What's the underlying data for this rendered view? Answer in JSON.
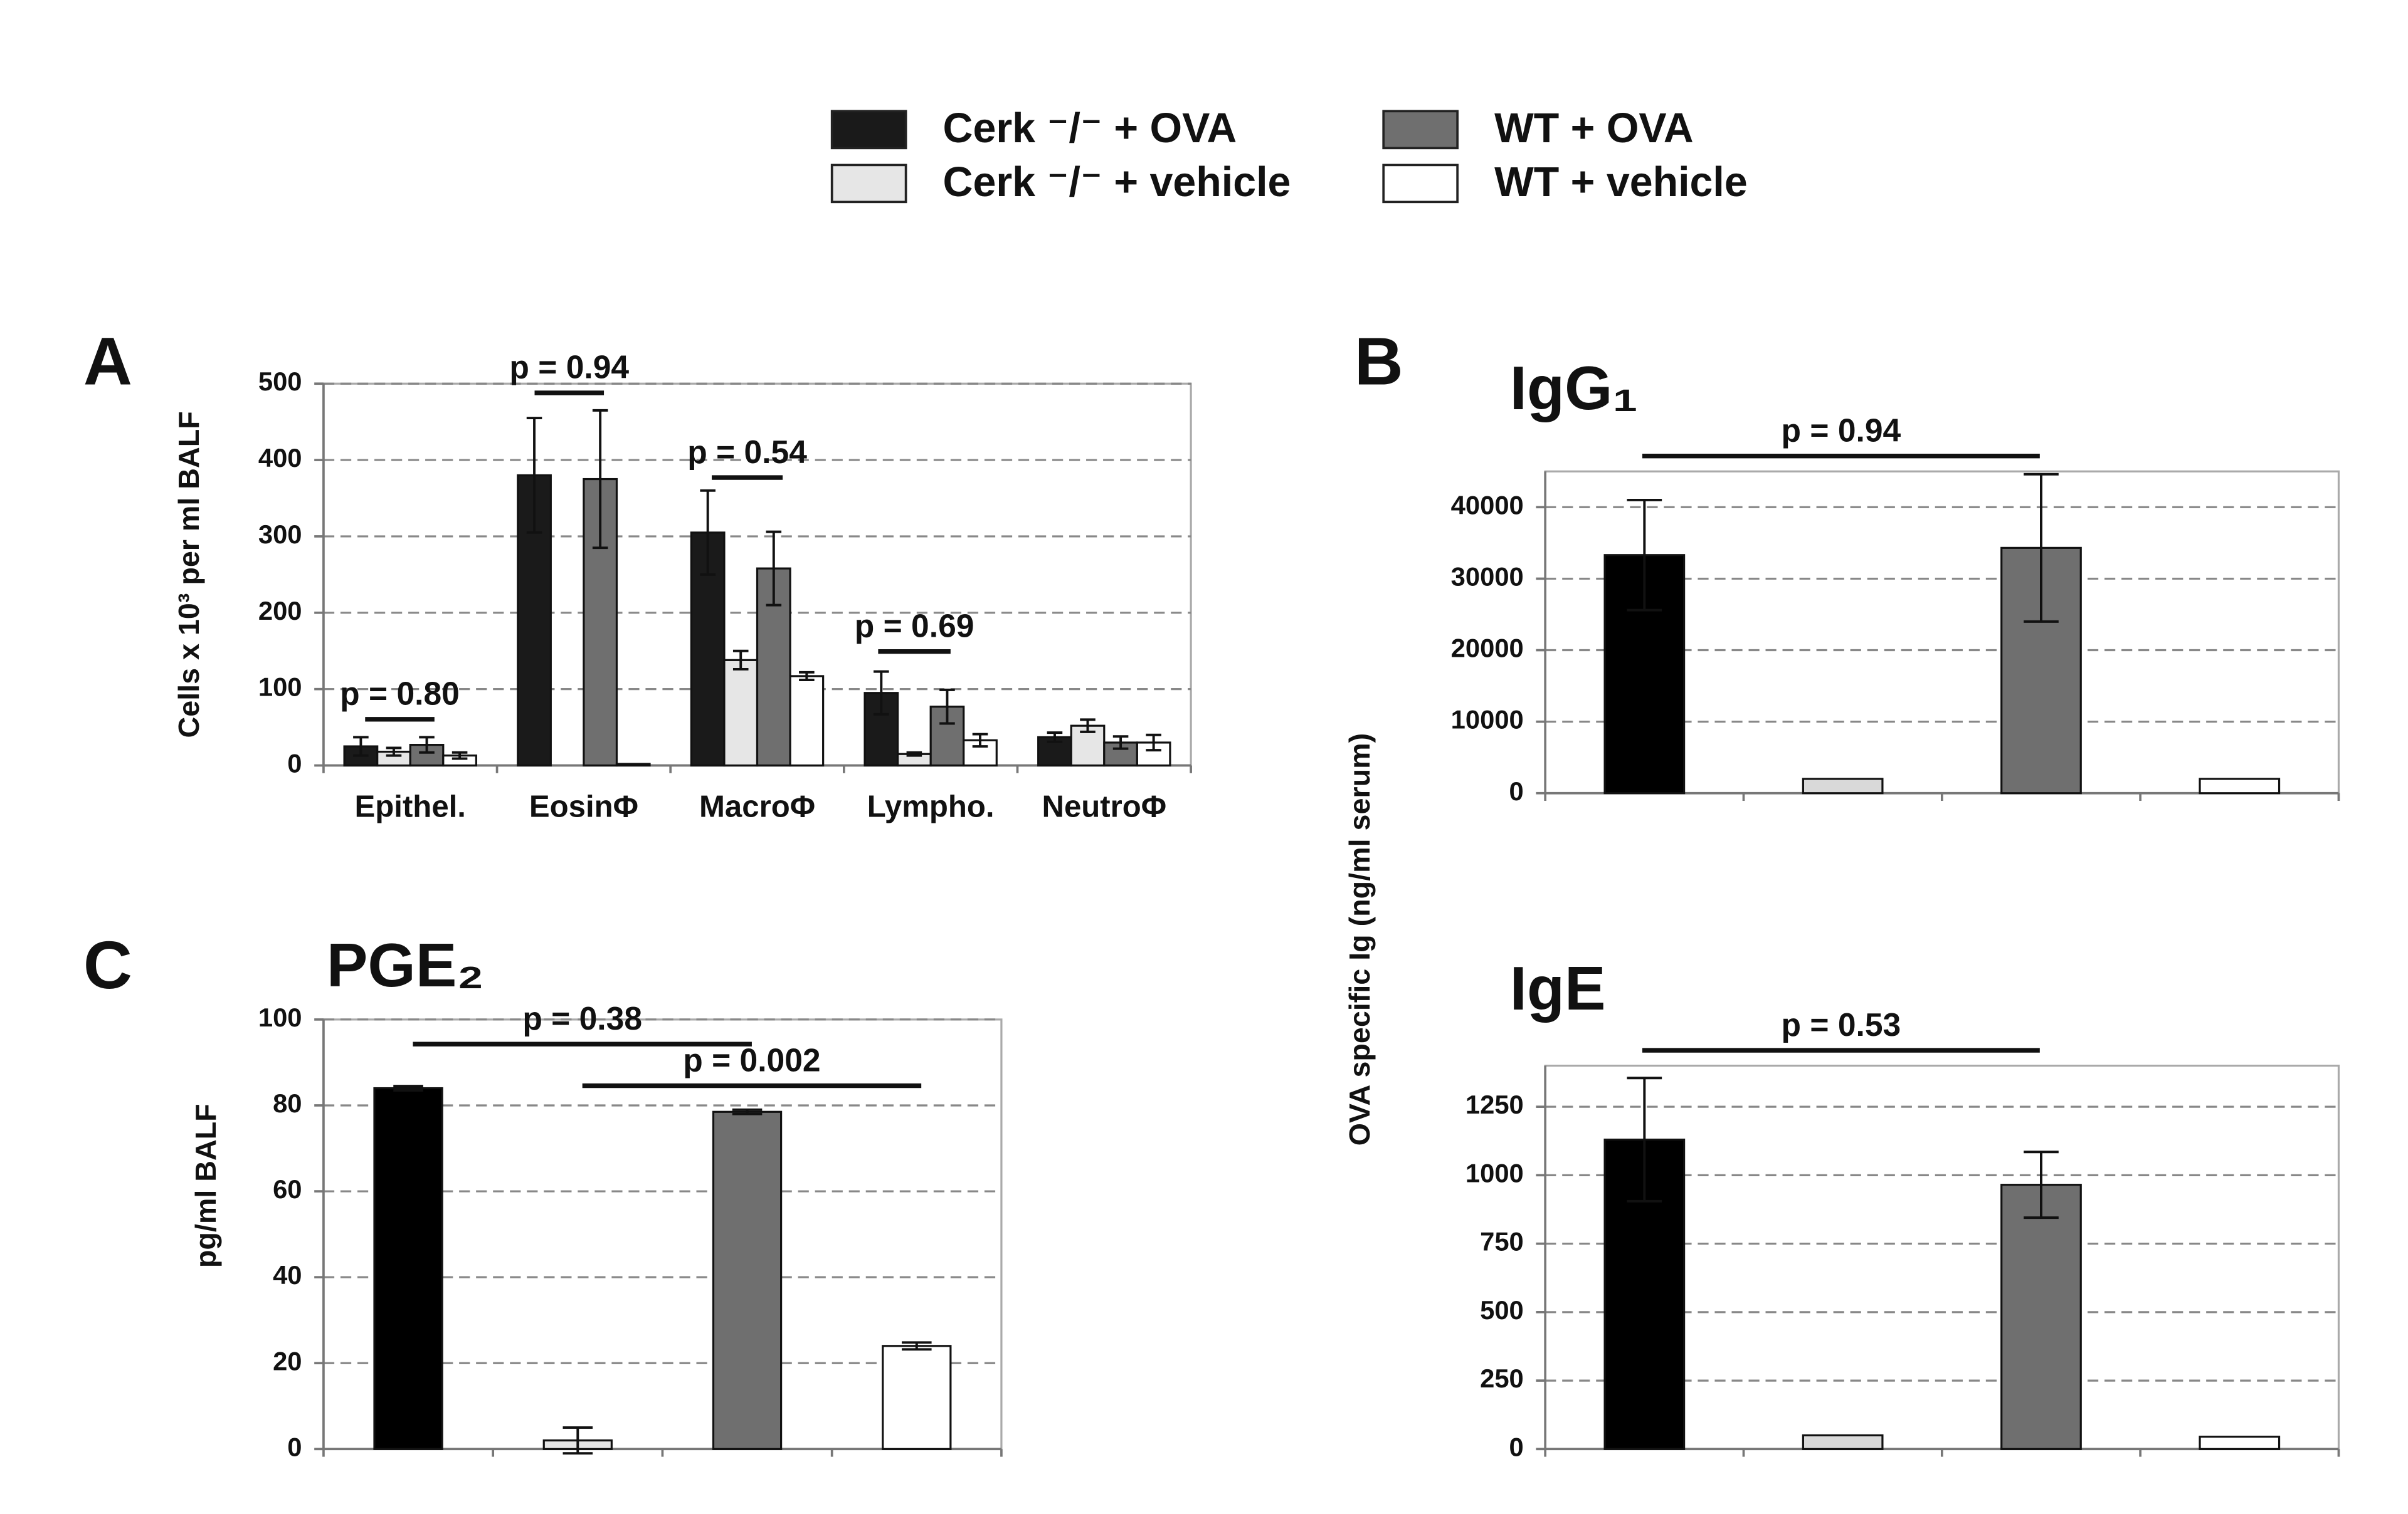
{
  "chart_data": [
    {
      "type": "grouped-bar",
      "panel": "A",
      "ylabel": "Cells x 10³ per ml BALF",
      "categories": [
        "Epithel.",
        "EosinΦ",
        "MacroΦ",
        "Lympho.",
        "NeutroΦ"
      ],
      "series": [
        {
          "name": "Cerk ⁻/⁻ + OVA",
          "color": "#1a1a1a",
          "values": [
            25,
            380,
            305,
            95,
            37
          ],
          "errors": [
            12,
            75,
            55,
            28,
            6
          ]
        },
        {
          "name": "Cerk ⁻/⁻ + vehicle",
          "color": "#e6e6e6",
          "values": [
            18,
            0,
            138,
            15,
            52
          ],
          "errors": [
            5,
            0,
            12,
            2,
            8
          ]
        },
        {
          "name": "WT + OVA",
          "color": "#6f6f6f",
          "values": [
            27,
            375,
            258,
            77,
            30
          ],
          "errors": [
            10,
            90,
            48,
            22,
            8
          ]
        },
        {
          "name": "WT + vehicle",
          "color": "#ffffff",
          "values": [
            13,
            2,
            117,
            33,
            30
          ],
          "errors": [
            4,
            0,
            5,
            8,
            10
          ]
        }
      ],
      "ylim": [
        0,
        500
      ],
      "yticks": [
        0,
        100,
        200,
        300,
        400,
        500
      ],
      "grid": true,
      "annotations": [
        "p = 0.80",
        "p = 0.94",
        "p = 0.54",
        "p = 0.69"
      ]
    },
    {
      "type": "bar",
      "panel": "B",
      "title": "IgG₁",
      "ylabel": "OVA specific Ig  (ng/ml serum)",
      "categories": [
        null,
        null,
        null,
        null
      ],
      "values": [
        33300,
        2000,
        34300,
        2000
      ],
      "errors": [
        7700,
        0,
        10300,
        0
      ],
      "colors": [
        "#000000",
        "#d9d9d9",
        "#6f6f6f",
        "#ffffff"
      ],
      "ylim": [
        0,
        45000
      ],
      "yticks": [
        0,
        10000,
        20000,
        30000,
        40000
      ],
      "grid": true,
      "annotations": [
        "p = 0.94"
      ]
    },
    {
      "type": "bar",
      "title": "IgE",
      "categories": [
        null,
        null,
        null,
        null
      ],
      "values": [
        1130,
        50,
        965,
        45
      ],
      "errors": [
        225,
        0,
        120,
        0
      ],
      "colors": [
        "#000000",
        "#d9d9d9",
        "#6f6f6f",
        "#ffffff"
      ],
      "ylim": [
        0,
        1400
      ],
      "yticks": [
        0,
        250,
        500,
        750,
        1000,
        1250
      ],
      "grid": true,
      "annotations": [
        "p = 0.53"
      ]
    },
    {
      "type": "bar",
      "panel": "C",
      "title": "PGE₂",
      "ylabel": "pg/ml BALF",
      "categories": [
        null,
        null,
        null,
        null
      ],
      "values": [
        84,
        2,
        78.5,
        24
      ],
      "errors": [
        0.5,
        3,
        0.5,
        0.8
      ],
      "colors": [
        "#000000",
        "#e6e6e6",
        "#6f6f6f",
        "#ffffff"
      ],
      "ylim": [
        0,
        100
      ],
      "yticks": [
        0,
        20,
        40,
        60,
        80,
        100
      ],
      "grid": true,
      "annotations": [
        "p = 0.38",
        "p = 0.002"
      ]
    }
  ]
}
